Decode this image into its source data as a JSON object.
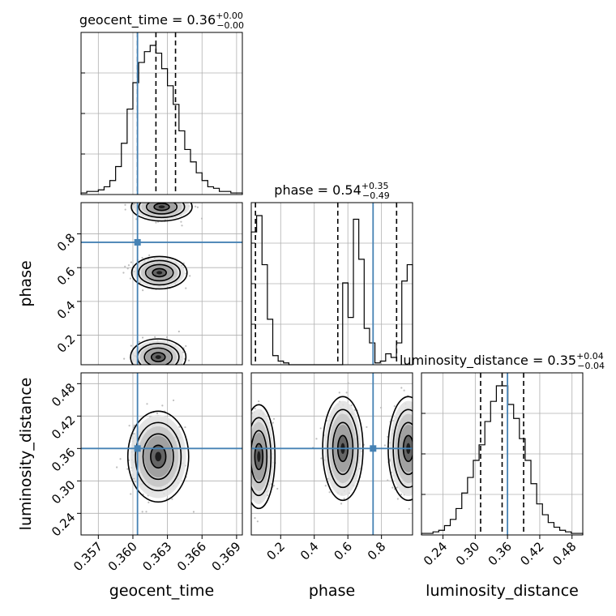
{
  "chart_data": {
    "type": "corner",
    "parameters": [
      "geocent_time",
      "phase",
      "luminosity_distance"
    ],
    "axis_labels": {
      "geocent_time": "geocent_time",
      "phase": "phase",
      "luminosity_distance": "luminosity_distance"
    },
    "ranges": {
      "geocent_time": [
        0.3555,
        0.3695
      ],
      "phase": [
        0.025,
        0.985
      ],
      "luminosity_distance": [
        0.2,
        0.5
      ]
    },
    "ticks": {
      "geocent_time": [
        "0.357",
        "0.360",
        "0.363",
        "0.366",
        "0.369"
      ],
      "phase": [
        "0.2",
        "0.4",
        "0.6",
        "0.8"
      ],
      "luminosity_distance": [
        "0.24",
        "0.30",
        "0.36",
        "0.42",
        "0.48"
      ]
    },
    "titles": [
      {
        "param": "geocent_time",
        "label": "geocent_time",
        "median": "0.36",
        "plus": "+0.00",
        "minus": "−0.00"
      },
      {
        "param": "phase",
        "label": "phase",
        "median": "0.54",
        "plus": "+0.35",
        "minus": "−0.49"
      },
      {
        "param": "luminosity_distance",
        "label": "luminosity_distance",
        "median": "0.35",
        "plus": "+0.04",
        "minus": "−0.04"
      }
    ],
    "quantiles": {
      "geocent_time": [
        0.3604,
        0.362,
        0.3637
      ],
      "phase": [
        0.05,
        0.54,
        0.89
      ],
      "luminosity_distance": [
        0.31,
        0.35,
        0.39
      ]
    },
    "truths": {
      "geocent_time": 0.3604,
      "phase": 0.75,
      "luminosity_distance": 0.36
    },
    "histograms": {
      "geocent_time": {
        "range": [
          0.3555,
          0.3695
        ],
        "counts": [
          1,
          2,
          2,
          3,
          5,
          9,
          18,
          33,
          55,
          72,
          85,
          92,
          96,
          91,
          81,
          70,
          58,
          41,
          29,
          21,
          14,
          9,
          5,
          4,
          2,
          2,
          1,
          1
        ]
      },
      "phase": {
        "range": [
          0.025,
          0.985
        ],
        "counts": [
          73,
          82,
          55,
          25,
          5,
          2,
          1,
          0,
          0,
          0,
          0,
          0,
          0,
          0,
          0,
          0,
          0,
          45,
          26,
          80,
          58,
          20,
          12,
          1,
          2,
          6,
          4,
          12,
          46,
          55
        ]
      },
      "luminosity_distance": {
        "range": [
          0.2,
          0.5
        ],
        "counts": [
          1,
          1,
          2,
          3,
          6,
          10,
          17,
          27,
          37,
          48,
          58,
          73,
          86,
          96,
          96,
          84,
          75,
          62,
          48,
          33,
          20,
          13,
          8,
          5,
          3,
          2,
          1,
          1
        ]
      }
    },
    "joint_modes": {
      "phase_vs_geocent_time": [
        [
          0.3622,
          0.07
        ],
        [
          0.3623,
          0.57
        ],
        [
          0.3625,
          0.96
        ]
      ],
      "luminosity_distance_vs_geocent_time": [
        [
          0.3622,
          0.345
        ]
      ],
      "luminosity_distance_vs_phase": [
        [
          0.07,
          0.345
        ],
        [
          0.57,
          0.36
        ],
        [
          0.96,
          0.36
        ]
      ]
    }
  }
}
